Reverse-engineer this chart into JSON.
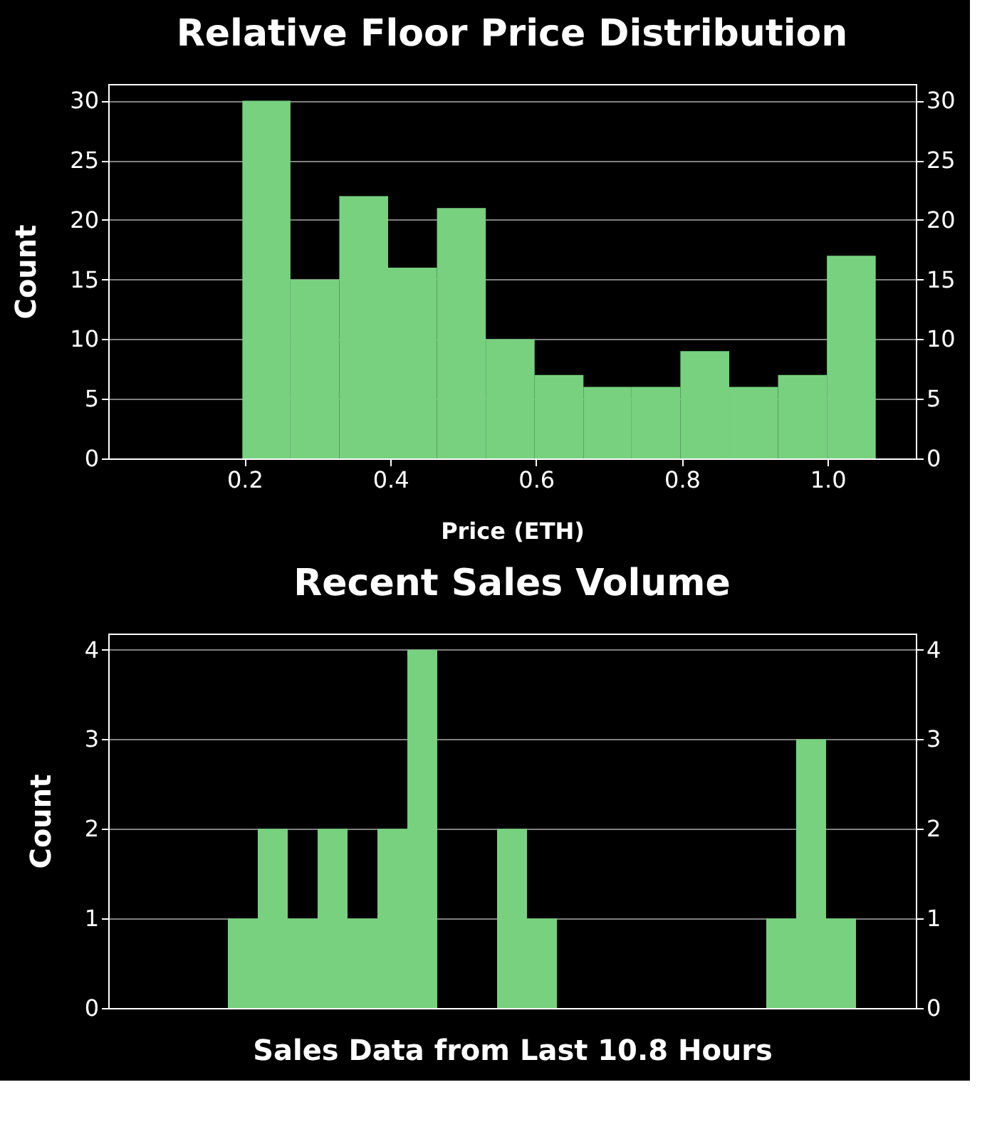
{
  "chart_data": [
    {
      "type": "histogram",
      "title": "Relative Floor Price Distribution",
      "xlabel": "Price (ETH)",
      "ylabel": "Count",
      "bins": [
        0.197,
        0.263,
        0.33,
        0.397,
        0.464,
        0.531,
        0.598,
        0.665,
        0.731,
        0.798,
        0.865,
        0.932,
        0.999,
        1.066
      ],
      "values": [
        30,
        15,
        22,
        16,
        21,
        10,
        7,
        6,
        6,
        9,
        6,
        7,
        17
      ],
      "color": "#77d17f",
      "xlim": [
        0.013,
        1.121
      ],
      "xticks": [
        0.2,
        0.4,
        0.6,
        0.8,
        {
          "value": 1.0,
          "label": "1.0"
        }
      ],
      "ylim": [
        0,
        31.4
      ],
      "yticks": [
        0,
        5,
        10,
        15,
        20,
        25,
        30
      ],
      "y2lim": [
        0,
        31.4
      ],
      "y2ticks": [
        0,
        5,
        10,
        15,
        20,
        25,
        30
      ],
      "grid": "y"
    },
    {
      "type": "bar",
      "title": "Recent Sales Volume",
      "xlabel": "Sales Data from Last 10.8 Hours",
      "ylabel": "Count",
      "categories": [
        null,
        null,
        null,
        null,
        null,
        null,
        null,
        null,
        null,
        null,
        null,
        null,
        null,
        null,
        null,
        null,
        null,
        null,
        null,
        null,
        null,
        null,
        null,
        null,
        null,
        null,
        null
      ],
      "values": [
        0,
        0,
        0,
        0,
        1,
        2,
        1,
        2,
        1,
        2,
        4,
        0,
        0,
        2,
        1,
        0,
        0,
        0,
        0,
        0,
        0,
        0,
        1,
        3,
        1,
        0,
        0
      ],
      "color": "#77d17f",
      "ylim": [
        0,
        4.18
      ],
      "yticks": [
        0,
        1,
        2,
        3,
        4
      ],
      "y2lim": [
        0,
        4.18
      ],
      "y2ticks": [
        0,
        1,
        2,
        3,
        4
      ],
      "tick_labels": "y",
      "grid": "y"
    }
  ]
}
